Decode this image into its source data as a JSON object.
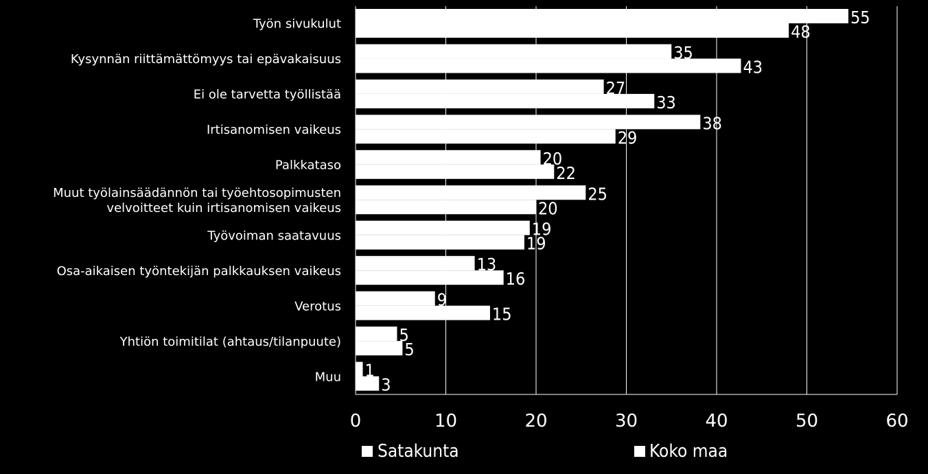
{
  "chart_data": {
    "type": "bar",
    "orientation": "horizontal",
    "categories": [
      [
        "Työn sivukulut"
      ],
      [
        "Kysynnän riittämättömyys tai epävakaisuus"
      ],
      [
        "Ei ole tarvetta työllistää"
      ],
      [
        "Irtisanomisen vaikeus"
      ],
      [
        "Palkkataso"
      ],
      [
        "Muut työlainsäädännön tai työehtosopimusten",
        "velvoitteet kuin irtisanomisen vaikeus"
      ],
      [
        "Työvoiman saatavuus"
      ],
      [
        "Osa-aikaisen työntekijän palkkauksen vaikeus"
      ],
      [
        "Verotus"
      ],
      [
        "Yhtiön toimitilat (ahtaus/tilanpuute)"
      ],
      [
        "Muu"
      ]
    ],
    "series": [
      {
        "name": "Satakunta",
        "color": "#ffffff",
        "values": [
          55,
          35,
          27,
          38,
          20,
          25,
          19,
          13,
          9,
          5,
          1
        ],
        "bar_values": [
          54.6,
          35,
          27.5,
          38.2,
          20.5,
          25.5,
          19.3,
          13.2,
          8.8,
          4.6,
          0.8
        ]
      },
      {
        "name": "Koko maa",
        "color": "#ffffff",
        "values": [
          48,
          43,
          33,
          29,
          22,
          20,
          19,
          16,
          15,
          5,
          3
        ],
        "bar_values": [
          48,
          42.7,
          33.1,
          28.8,
          22,
          20,
          18.7,
          16.4,
          14.9,
          5.2,
          2.6
        ]
      }
    ],
    "xlim": [
      0,
      60
    ],
    "xticks": [
      "0",
      "10",
      "20",
      "30",
      "40",
      "50",
      "60"
    ],
    "grid": true,
    "legend_position": "bottom",
    "background": "#000000",
    "foreground": "#ffffff"
  }
}
